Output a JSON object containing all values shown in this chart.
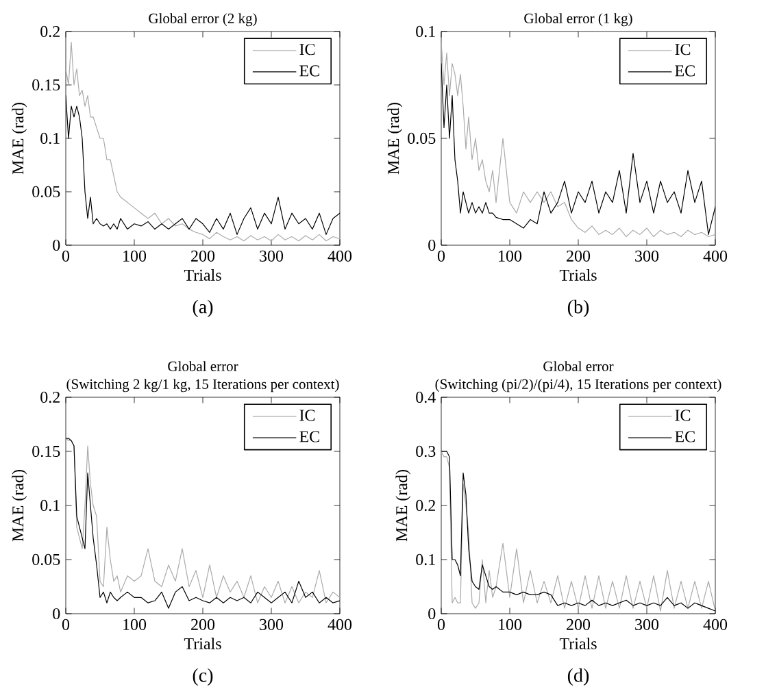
{
  "chart_data": [
    {
      "type": "line",
      "title": "Global error (2 kg)",
      "xlabel": "Trials",
      "ylabel": "MAE (rad)",
      "annotations": [
        "(a)"
      ],
      "legend": "top right",
      "xlim": [
        0,
        400
      ],
      "ylim": [
        0,
        0.2
      ],
      "xticks": [
        0,
        100,
        200,
        300,
        400
      ],
      "yticks": [
        0,
        0.05,
        0.1,
        0.15,
        0.2
      ],
      "x": [
        0,
        4,
        8,
        12,
        16,
        20,
        24,
        28,
        32,
        36,
        40,
        45,
        50,
        55,
        60,
        65,
        70,
        75,
        80,
        90,
        100,
        110,
        120,
        130,
        140,
        150,
        160,
        170,
        180,
        190,
        200,
        210,
        220,
        230,
        240,
        250,
        260,
        270,
        280,
        290,
        300,
        310,
        320,
        330,
        340,
        350,
        360,
        370,
        380,
        390,
        400
      ],
      "series": [
        {
          "name": "IC",
          "color": "#aaaaaa",
          "values": [
            0.165,
            0.15,
            0.19,
            0.15,
            0.165,
            0.14,
            0.145,
            0.13,
            0.14,
            0.12,
            0.12,
            0.11,
            0.1,
            0.1,
            0.08,
            0.08,
            0.065,
            0.05,
            0.045,
            0.04,
            0.035,
            0.03,
            0.025,
            0.03,
            0.02,
            0.025,
            0.018,
            0.02,
            0.015,
            0.012,
            0.01,
            0.006,
            0.012,
            0.008,
            0.005,
            0.008,
            0.004,
            0.009,
            0.005,
            0.008,
            0.004,
            0.01,
            0.005,
            0.008,
            0.004,
            0.009,
            0.005,
            0.01,
            0.004,
            0.008,
            0.006
          ]
        },
        {
          "name": "EC",
          "color": "#000000",
          "values": [
            0.14,
            0.1,
            0.13,
            0.12,
            0.13,
            0.12,
            0.1,
            0.05,
            0.025,
            0.045,
            0.02,
            0.025,
            0.02,
            0.018,
            0.02,
            0.015,
            0.02,
            0.015,
            0.025,
            0.015,
            0.02,
            0.018,
            0.022,
            0.015,
            0.02,
            0.015,
            0.02,
            0.025,
            0.015,
            0.025,
            0.02,
            0.012,
            0.025,
            0.015,
            0.03,
            0.01,
            0.025,
            0.035,
            0.015,
            0.03,
            0.02,
            0.045,
            0.015,
            0.03,
            0.02,
            0.025,
            0.015,
            0.03,
            0.01,
            0.025,
            0.03
          ]
        }
      ]
    },
    {
      "type": "line",
      "title": "Global error (1 kg)",
      "xlabel": "Trials",
      "ylabel": "MAE (rad)",
      "annotations": [
        "(b)"
      ],
      "legend": "top right",
      "xlim": [
        0,
        400
      ],
      "ylim": [
        0,
        0.1
      ],
      "xticks": [
        0,
        100,
        200,
        300,
        400
      ],
      "yticks": [
        0,
        0.05,
        0.1
      ],
      "x": [
        0,
        4,
        8,
        12,
        16,
        20,
        24,
        28,
        32,
        36,
        40,
        45,
        50,
        55,
        60,
        65,
        70,
        75,
        80,
        90,
        100,
        110,
        120,
        130,
        140,
        150,
        160,
        170,
        180,
        190,
        200,
        210,
        220,
        230,
        240,
        250,
        260,
        270,
        280,
        290,
        300,
        310,
        320,
        330,
        340,
        350,
        360,
        370,
        380,
        390,
        400
      ],
      "series": [
        {
          "name": "IC",
          "color": "#aaaaaa",
          "values": [
            0.095,
            0.075,
            0.09,
            0.07,
            0.085,
            0.08,
            0.07,
            0.08,
            0.065,
            0.045,
            0.06,
            0.04,
            0.05,
            0.035,
            0.04,
            0.03,
            0.025,
            0.035,
            0.02,
            0.05,
            0.02,
            0.015,
            0.025,
            0.02,
            0.025,
            0.02,
            0.025,
            0.018,
            0.02,
            0.012,
            0.008,
            0.006,
            0.009,
            0.005,
            0.007,
            0.005,
            0.008,
            0.004,
            0.007,
            0.005,
            0.008,
            0.004,
            0.007,
            0.005,
            0.006,
            0.004,
            0.007,
            0.005,
            0.006,
            0.004,
            0.005
          ]
        },
        {
          "name": "EC",
          "color": "#000000",
          "values": [
            0.085,
            0.055,
            0.075,
            0.05,
            0.07,
            0.04,
            0.03,
            0.015,
            0.025,
            0.02,
            0.015,
            0.02,
            0.015,
            0.018,
            0.015,
            0.02,
            0.015,
            0.015,
            0.013,
            0.012,
            0.012,
            0.01,
            0.008,
            0.012,
            0.01,
            0.025,
            0.015,
            0.02,
            0.03,
            0.015,
            0.025,
            0.02,
            0.03,
            0.015,
            0.025,
            0.02,
            0.035,
            0.015,
            0.043,
            0.02,
            0.03,
            0.015,
            0.03,
            0.02,
            0.025,
            0.015,
            0.035,
            0.02,
            0.03,
            0.005,
            0.018
          ]
        }
      ]
    },
    {
      "type": "line",
      "title": "Global error",
      "subtitle": "(Switching 2 kg/1 kg, 15 Iterations per context)",
      "xlabel": "Trials",
      "ylabel": "MAE (rad)",
      "annotations": [
        "(c)"
      ],
      "legend": "top right",
      "xlim": [
        0,
        400
      ],
      "ylim": [
        0,
        0.2
      ],
      "xticks": [
        0,
        100,
        200,
        300,
        400
      ],
      "yticks": [
        0,
        0.05,
        0.1,
        0.15,
        0.2
      ],
      "x": [
        0,
        4,
        8,
        12,
        16,
        20,
        24,
        28,
        32,
        36,
        40,
        45,
        50,
        55,
        60,
        65,
        70,
        75,
        80,
        90,
        100,
        110,
        120,
        130,
        140,
        150,
        160,
        170,
        180,
        190,
        200,
        210,
        220,
        230,
        240,
        250,
        260,
        270,
        280,
        290,
        300,
        310,
        320,
        330,
        340,
        350,
        360,
        370,
        380,
        390,
        400
      ],
      "series": [
        {
          "name": "IC",
          "color": "#aaaaaa",
          "values": [
            0.162,
            0.16,
            0.16,
            0.155,
            0.08,
            0.07,
            0.06,
            0.1,
            0.155,
            0.12,
            0.1,
            0.09,
            0.03,
            0.025,
            0.08,
            0.05,
            0.03,
            0.035,
            0.02,
            0.035,
            0.03,
            0.035,
            0.06,
            0.03,
            0.025,
            0.045,
            0.03,
            0.06,
            0.025,
            0.04,
            0.015,
            0.045,
            0.015,
            0.035,
            0.02,
            0.03,
            0.015,
            0.035,
            0.01,
            0.025,
            0.015,
            0.03,
            0.01,
            0.025,
            0.01,
            0.02,
            0.015,
            0.04,
            0.01,
            0.02,
            0.015
          ]
        },
        {
          "name": "EC",
          "color": "#000000",
          "values": [
            0.162,
            0.162,
            0.16,
            0.155,
            0.09,
            0.08,
            0.07,
            0.06,
            0.13,
            0.1,
            0.07,
            0.045,
            0.015,
            0.02,
            0.01,
            0.02,
            0.015,
            0.012,
            0.015,
            0.02,
            0.015,
            0.015,
            0.01,
            0.012,
            0.02,
            0.005,
            0.02,
            0.025,
            0.012,
            0.015,
            0.012,
            0.01,
            0.015,
            0.01,
            0.015,
            0.012,
            0.015,
            0.01,
            0.02,
            0.015,
            0.01,
            0.015,
            0.02,
            0.01,
            0.03,
            0.015,
            0.02,
            0.01,
            0.015,
            0.01,
            0.012
          ]
        }
      ]
    },
    {
      "type": "line",
      "title": "Global error",
      "subtitle": "(Switching (pi/2)/(pi/4), 15 Iterations per context)",
      "xlabel": "Trials",
      "ylabel": "MAE (rad)",
      "annotations": [
        "(d)"
      ],
      "legend": "top right",
      "xlim": [
        0,
        400
      ],
      "ylim": [
        0,
        0.4
      ],
      "xticks": [
        0,
        100,
        200,
        300,
        400
      ],
      "yticks": [
        0,
        0.1,
        0.2,
        0.3,
        0.4
      ],
      "x": [
        0,
        4,
        8,
        12,
        16,
        20,
        24,
        28,
        32,
        36,
        40,
        45,
        50,
        55,
        60,
        65,
        70,
        75,
        80,
        90,
        100,
        110,
        120,
        130,
        140,
        150,
        160,
        170,
        180,
        190,
        200,
        210,
        220,
        230,
        240,
        250,
        260,
        270,
        280,
        290,
        300,
        310,
        320,
        330,
        340,
        350,
        360,
        370,
        380,
        390,
        400
      ],
      "series": [
        {
          "name": "IC",
          "color": "#aaaaaa",
          "values": [
            0.3,
            0.29,
            0.29,
            0.27,
            0.02,
            0.03,
            0.02,
            0.02,
            0.24,
            0.2,
            0.15,
            0.02,
            0.01,
            0.02,
            0.1,
            0.02,
            0.08,
            0.03,
            0.05,
            0.13,
            0.03,
            0.12,
            0.02,
            0.08,
            0.02,
            0.06,
            0.02,
            0.07,
            0.01,
            0.06,
            0.01,
            0.07,
            0.01,
            0.07,
            0.01,
            0.06,
            0.01,
            0.07,
            0.01,
            0.06,
            0.01,
            0.07,
            0.005,
            0.08,
            0.01,
            0.06,
            0.01,
            0.06,
            0.01,
            0.06,
            0.005
          ]
        },
        {
          "name": "EC",
          "color": "#000000",
          "values": [
            0.3,
            0.3,
            0.3,
            0.29,
            0.1,
            0.1,
            0.09,
            0.07,
            0.26,
            0.22,
            0.12,
            0.06,
            0.05,
            0.045,
            0.09,
            0.07,
            0.05,
            0.045,
            0.05,
            0.04,
            0.04,
            0.035,
            0.04,
            0.035,
            0.035,
            0.04,
            0.035,
            0.015,
            0.02,
            0.015,
            0.02,
            0.015,
            0.025,
            0.015,
            0.02,
            0.015,
            0.02,
            0.025,
            0.015,
            0.02,
            0.015,
            0.02,
            0.015,
            0.03,
            0.015,
            0.02,
            0.01,
            0.02,
            0.015,
            0.01,
            0.005
          ]
        }
      ]
    }
  ]
}
